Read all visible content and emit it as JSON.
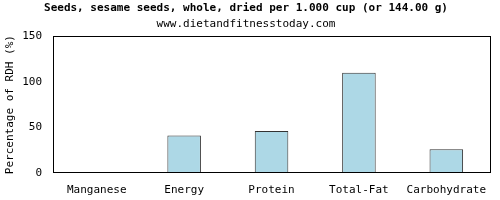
{
  "chart_data": {
    "type": "bar",
    "title": "Seeds, sesame seeds, whole, dried per 1.000 cup (or 144.00 g)",
    "subtitle": "www.dietandfitnesstoday.com",
    "ylabel": "Percentage of RDH (%)",
    "categories": [
      "Manganese",
      "Energy",
      "Protein",
      "Total-Fat",
      "Carbohydrate"
    ],
    "values": [
      0,
      41,
      46,
      110,
      26
    ],
    "color": "#add8e6",
    "ylim": [
      0,
      150
    ],
    "yticks": [
      0,
      50,
      100,
      150
    ],
    "grid": false
  }
}
